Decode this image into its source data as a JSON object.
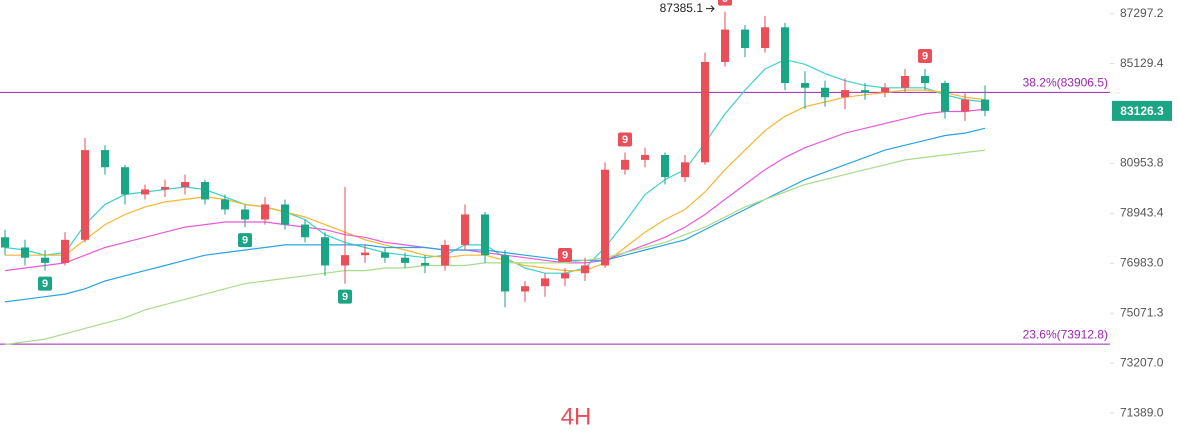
{
  "chart_data": {
    "type": "candlestick",
    "yscale": "log",
    "ylim": [
      70500,
      87900
    ],
    "yticks": [
      87297.2,
      85129.4,
      80953.8,
      78943.4,
      {
        "value": 76983,
        "label": "76983.0"
      },
      75071.3,
      {
        "value": 73207,
        "label": "73207.0"
      },
      {
        "value": 71389,
        "label": "71389.0"
      }
    ],
    "up_color": "#e94e59",
    "down_color": "#1aa584",
    "open": [
      78000,
      77600,
      77200,
      77000,
      77900,
      81500,
      80800,
      79700,
      79900,
      80000,
      80200,
      79500,
      79100,
      78700,
      79300,
      78500,
      78000,
      76900,
      77300,
      77400,
      77200,
      77000,
      76900,
      77700,
      78900,
      77300,
      75900,
      76100,
      76400,
      76600,
      76900,
      80700,
      81100,
      81300,
      80400,
      81000,
      85200,
      86600,
      85800,
      86700,
      84300,
      84100,
      83700,
      84000,
      83900,
      84100,
      84600,
      84300,
      83100,
      83600
    ],
    "high": [
      78300,
      77900,
      77500,
      78200,
      82000,
      81700,
      80900,
      80100,
      80300,
      80500,
      80300,
      79700,
      79300,
      79600,
      79500,
      78700,
      78200,
      80000,
      77700,
      77600,
      77400,
      77300,
      77900,
      79300,
      79000,
      77500,
      76300,
      76600,
      76800,
      77200,
      81000,
      81400,
      81600,
      81400,
      81300,
      85600,
      87385.1,
      86800,
      87200,
      86900,
      84800,
      84400,
      84500,
      84300,
      84300,
      84900,
      84900,
      84400,
      83900,
      84200
    ],
    "low": [
      77300,
      76900,
      76700,
      76900,
      77800,
      80500,
      79300,
      79500,
      79600,
      79700,
      79300,
      78900,
      78400,
      78500,
      78300,
      77800,
      76500,
      76200,
      77000,
      77000,
      76800,
      76600,
      76700,
      77500,
      77000,
      75300,
      75500,
      75700,
      76100,
      76300,
      76800,
      80500,
      80800,
      80100,
      80200,
      80900,
      85000,
      85400,
      85600,
      84000,
      83200,
      83300,
      83200,
      83600,
      83700,
      83900,
      84000,
      82800,
      82700,
      82900
    ],
    "close": [
      77600,
      77200,
      77000,
      77900,
      81500,
      80800,
      79700,
      79900,
      80000,
      80200,
      79500,
      79100,
      78700,
      79300,
      78500,
      78000,
      76900,
      77300,
      77400,
      77200,
      77000,
      76900,
      77700,
      78900,
      77300,
      75900,
      76100,
      76400,
      76600,
      76900,
      80700,
      81100,
      81300,
      80400,
      81000,
      85200,
      86600,
      85800,
      86700,
      84300,
      84100,
      83700,
      84000,
      83900,
      84100,
      84600,
      84300,
      83100,
      83600,
      83126.3
    ],
    "series": [
      {
        "color": "#3fd0c9",
        "values": [
          77600,
          77500,
          77300,
          77400,
          78500,
          79300,
          79700,
          79800,
          79900,
          80000,
          79900,
          79600,
          79300,
          79200,
          79000,
          78700,
          78100,
          77800,
          77600,
          77400,
          77300,
          77200,
          77300,
          77700,
          77700,
          77200,
          76800,
          76600,
          76600,
          76800,
          77600,
          78600,
          79700,
          80300,
          80700,
          81800,
          83000,
          84000,
          84900,
          85300,
          85100,
          84700,
          84400,
          84200,
          84100,
          84100,
          84100,
          83800,
          83600,
          83500
        ]
      },
      {
        "color": "#f5b731",
        "values": [
          77300,
          77300,
          77300,
          77300,
          77900,
          78500,
          78900,
          79200,
          79400,
          79500,
          79600,
          79500,
          79300,
          79200,
          79000,
          78800,
          78500,
          78200,
          77900,
          77700,
          77500,
          77300,
          77200,
          77300,
          77300,
          77100,
          76900,
          76800,
          76700,
          76700,
          77000,
          77600,
          78200,
          78700,
          79100,
          79800,
          80700,
          81500,
          82300,
          82900,
          83300,
          83500,
          83700,
          83800,
          83900,
          84000,
          84000,
          83900,
          83700,
          83600
        ]
      },
      {
        "color": "#e85bd8",
        "values": [
          76700,
          76800,
          76900,
          77000,
          77300,
          77600,
          77800,
          78000,
          78200,
          78400,
          78500,
          78600,
          78600,
          78600,
          78500,
          78400,
          78300,
          78100,
          78000,
          77800,
          77700,
          77600,
          77500,
          77500,
          77400,
          77300,
          77200,
          77100,
          77000,
          77000,
          77100,
          77400,
          77700,
          78000,
          78400,
          78900,
          79500,
          80100,
          80700,
          81200,
          81600,
          81900,
          82200,
          82400,
          82600,
          82800,
          83000,
          83100,
          83100,
          83200
        ]
      },
      {
        "color": "#2ba3e0",
        "values": [
          75500,
          75600,
          75700,
          75800,
          76000,
          76300,
          76500,
          76700,
          76900,
          77100,
          77300,
          77400,
          77500,
          77600,
          77700,
          77700,
          77700,
          77700,
          77700,
          77600,
          77600,
          77600,
          77500,
          77500,
          77500,
          77400,
          77300,
          77200,
          77100,
          77100,
          77100,
          77300,
          77500,
          77700,
          77900,
          78300,
          78700,
          79100,
          79500,
          79900,
          80300,
          80600,
          80900,
          81200,
          81500,
          81700,
          81900,
          82100,
          82200,
          82400
        ]
      },
      {
        "color": "#a8dc8c",
        "values": [
          73900,
          74000,
          74100,
          74300,
          74500,
          74700,
          74900,
          75200,
          75400,
          75600,
          75800,
          76000,
          76200,
          76300,
          76400,
          76500,
          76600,
          76700,
          76700,
          76800,
          76800,
          76900,
          76900,
          76900,
          77000,
          77000,
          77000,
          77000,
          77000,
          77100,
          77200,
          77400,
          77600,
          77800,
          78100,
          78400,
          78800,
          79200,
          79500,
          79800,
          80100,
          80300,
          80500,
          80700,
          80900,
          81100,
          81200,
          81300,
          81400,
          81500
        ]
      }
    ],
    "td_up": [
      null,
      null,
      null,
      null,
      null,
      null,
      null,
      null,
      null,
      null,
      null,
      null,
      null,
      null,
      null,
      null,
      null,
      null,
      null,
      null,
      null,
      null,
      null,
      null,
      null,
      null,
      null,
      null,
      "9",
      null,
      null,
      "9",
      null,
      null,
      null,
      null,
      "9",
      null,
      null,
      null,
      null,
      null,
      null,
      null,
      null,
      null,
      "9",
      null,
      null,
      null
    ],
    "td_down": [
      null,
      null,
      "9",
      null,
      null,
      null,
      null,
      null,
      null,
      null,
      null,
      null,
      "9",
      null,
      null,
      null,
      null,
      "9",
      null,
      null,
      null,
      null,
      null,
      null,
      null,
      null,
      null,
      null,
      null,
      null,
      null,
      null,
      null,
      null,
      null,
      null,
      null,
      null,
      null,
      null,
      null,
      null,
      null,
      null,
      null,
      null,
      null,
      null,
      null,
      null
    ],
    "fib_levels": [
      {
        "value": 83906.5,
        "label": "38.2%(83906.5)"
      },
      {
        "value": 73912.8,
        "label": "23.6%(73912.8)"
      }
    ],
    "fib_color": "#9c27b0",
    "high_label": 87385.1,
    "last_price": 83126.3,
    "last_price_color": "#1aa584",
    "watermark": "4H"
  }
}
